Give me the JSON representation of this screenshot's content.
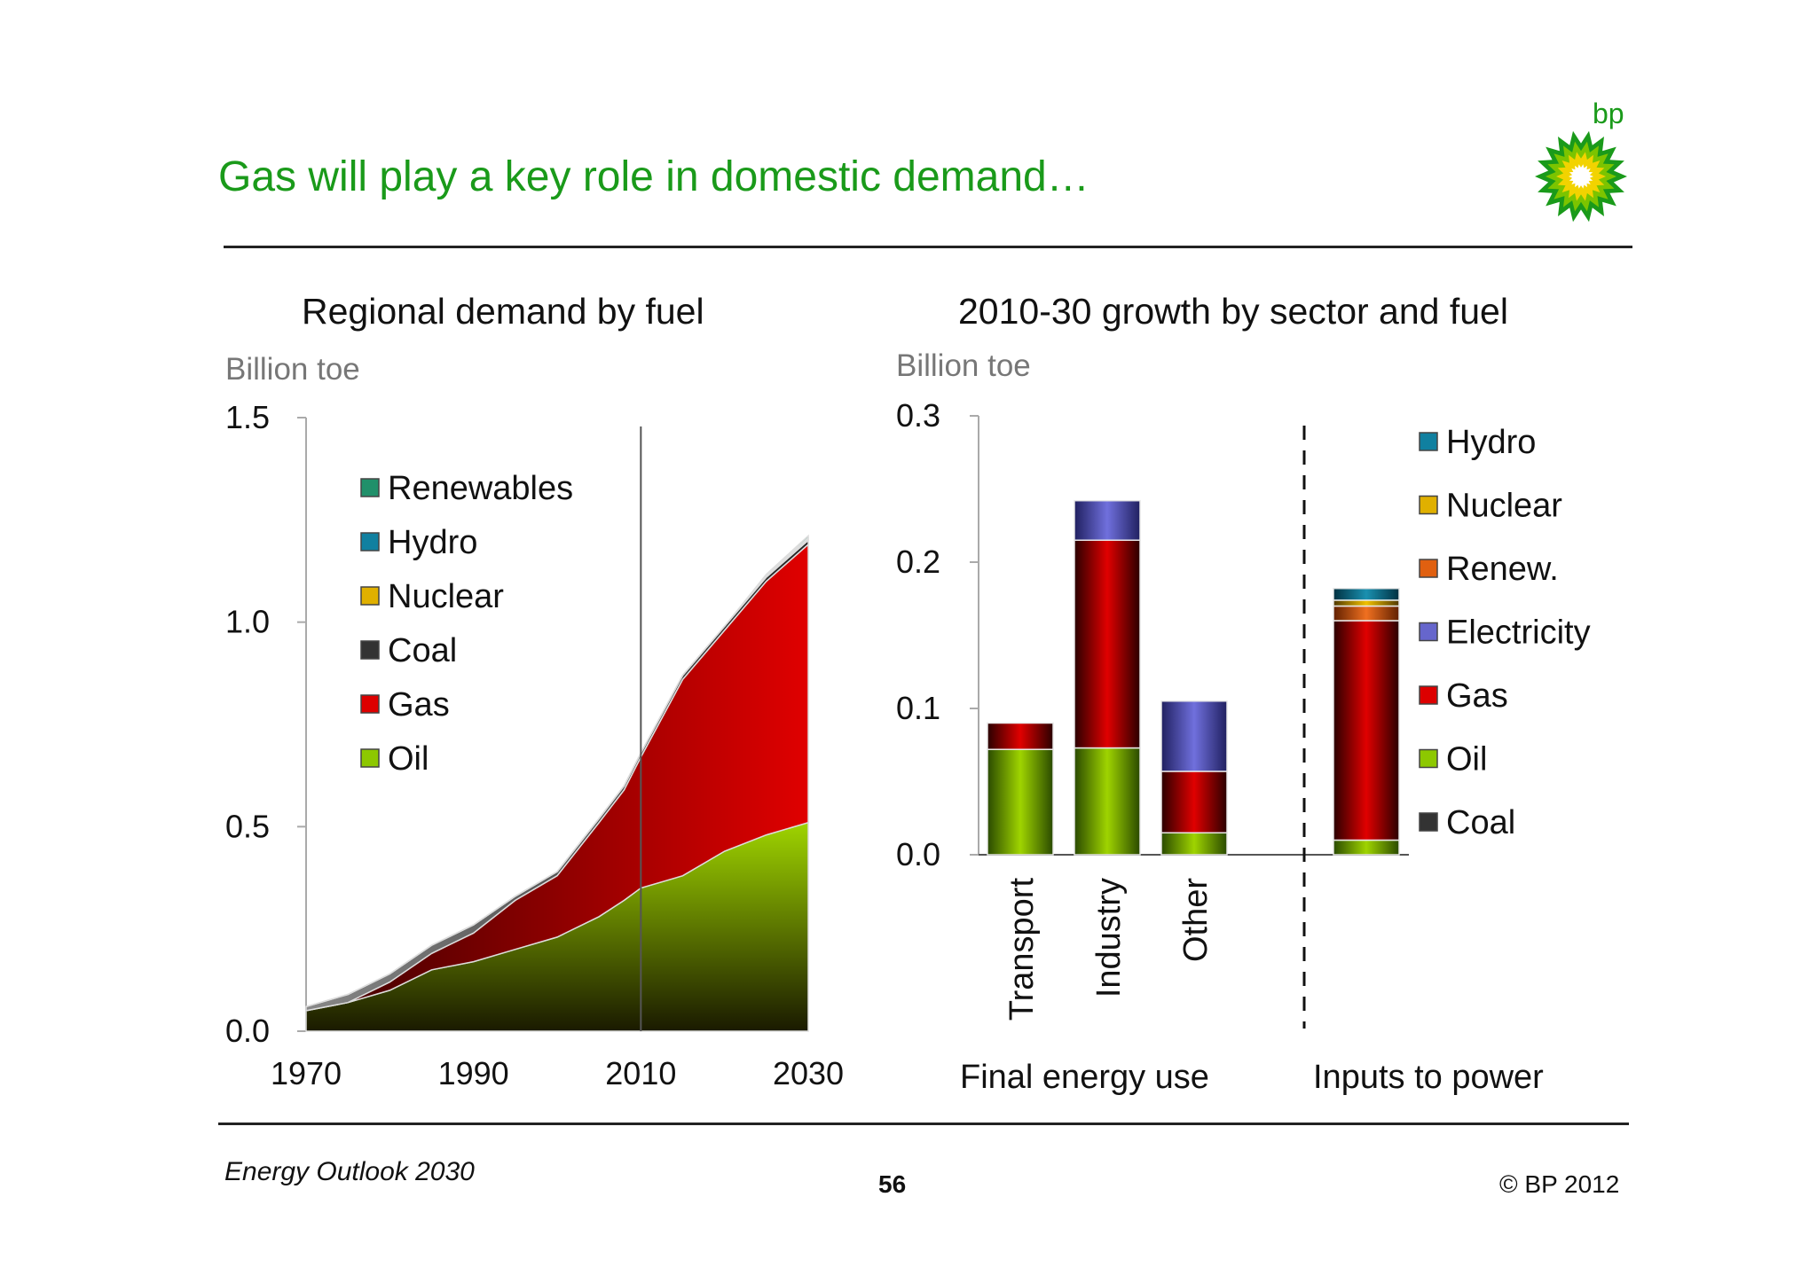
{
  "header": {
    "title": "Gas will play a key role in domestic demand…",
    "brand_text": "bp"
  },
  "footer": {
    "left": "Energy Outlook 2030",
    "page": "56",
    "right": "© BP 2012"
  },
  "colors": {
    "title_green": "#1a9a1a",
    "oil": "#8dc800",
    "gas": "#dd0000",
    "coal": "#333333",
    "electricity": "#6666cc",
    "renew": "#e06010",
    "nuclear": "#e0b000",
    "hydro": "#1080a0",
    "renewables": "#20906a"
  },
  "chart_data": [
    {
      "type": "area",
      "title": "Regional demand by fuel",
      "ylabel": "Billion toe",
      "x_ticks": [
        "1970",
        "1990",
        "2010",
        "2030"
      ],
      "y_ticks": [
        "0.0",
        "0.5",
        "1.0",
        "1.5"
      ],
      "xlim": [
        1970,
        2030
      ],
      "ylim": [
        0,
        1.5
      ],
      "stacked": true,
      "vertical_marker": 2010,
      "legend": [
        "Renewables",
        "Hydro",
        "Nuclear",
        "Coal",
        "Gas",
        "Oil"
      ],
      "x": [
        1970,
        1975,
        1980,
        1985,
        1990,
        1995,
        2000,
        2005,
        2008,
        2010,
        2015,
        2020,
        2025,
        2030
      ],
      "series": [
        {
          "name": "Oil",
          "values": [
            0.05,
            0.07,
            0.1,
            0.15,
            0.17,
            0.2,
            0.23,
            0.28,
            0.32,
            0.35,
            0.38,
            0.44,
            0.48,
            0.51
          ]
        },
        {
          "name": "Gas",
          "values": [
            0.0,
            0.0,
            0.02,
            0.04,
            0.07,
            0.12,
            0.15,
            0.23,
            0.27,
            0.32,
            0.48,
            0.54,
            0.62,
            0.68
          ]
        },
        {
          "name": "Coal",
          "values": [
            0.01,
            0.02,
            0.02,
            0.02,
            0.02,
            0.01,
            0.01,
            0.01,
            0.01,
            0.01,
            0.01,
            0.01,
            0.01,
            0.01
          ]
        },
        {
          "name": "Nuclear",
          "values": [
            0,
            0,
            0,
            0,
            0,
            0,
            0,
            0,
            0,
            0,
            0,
            0,
            0.002,
            0.003
          ]
        },
        {
          "name": "Hydro",
          "values": [
            0,
            0,
            0,
            0,
            0,
            0,
            0,
            0,
            0,
            0,
            0,
            0,
            0.002,
            0.003
          ]
        },
        {
          "name": "Renewables",
          "values": [
            0,
            0,
            0,
            0,
            0,
            0,
            0,
            0,
            0,
            0,
            0,
            0,
            0.003,
            0.005
          ]
        }
      ]
    },
    {
      "type": "bar",
      "title": "2010-30 growth by sector and fuel",
      "ylabel": "Billion toe",
      "y_ticks": [
        "0.0",
        "0.1",
        "0.2",
        "0.3"
      ],
      "ylim": [
        0,
        0.3
      ],
      "stacked": true,
      "categories": [
        "Transport",
        "Industry",
        "Other",
        "Power"
      ],
      "group_labels": [
        "Final energy use",
        "Inputs to power"
      ],
      "legend": [
        "Hydro",
        "Nuclear",
        "Renew.",
        "Electricity",
        "Gas",
        "Oil",
        "Coal"
      ],
      "series": [
        {
          "name": "Coal",
          "values": [
            0,
            0,
            0,
            0
          ]
        },
        {
          "name": "Oil",
          "values": [
            0.072,
            0.073,
            0.015,
            0.01
          ]
        },
        {
          "name": "Gas",
          "values": [
            0.018,
            0.142,
            0.042,
            0.15
          ]
        },
        {
          "name": "Electricity",
          "values": [
            0,
            0.027,
            0.048,
            0
          ]
        },
        {
          "name": "Renew.",
          "values": [
            0,
            0,
            0,
            0.01
          ]
        },
        {
          "name": "Nuclear",
          "values": [
            0,
            0,
            0,
            0.004
          ]
        },
        {
          "name": "Hydro",
          "values": [
            0,
            0,
            0,
            0.008
          ]
        }
      ]
    }
  ]
}
